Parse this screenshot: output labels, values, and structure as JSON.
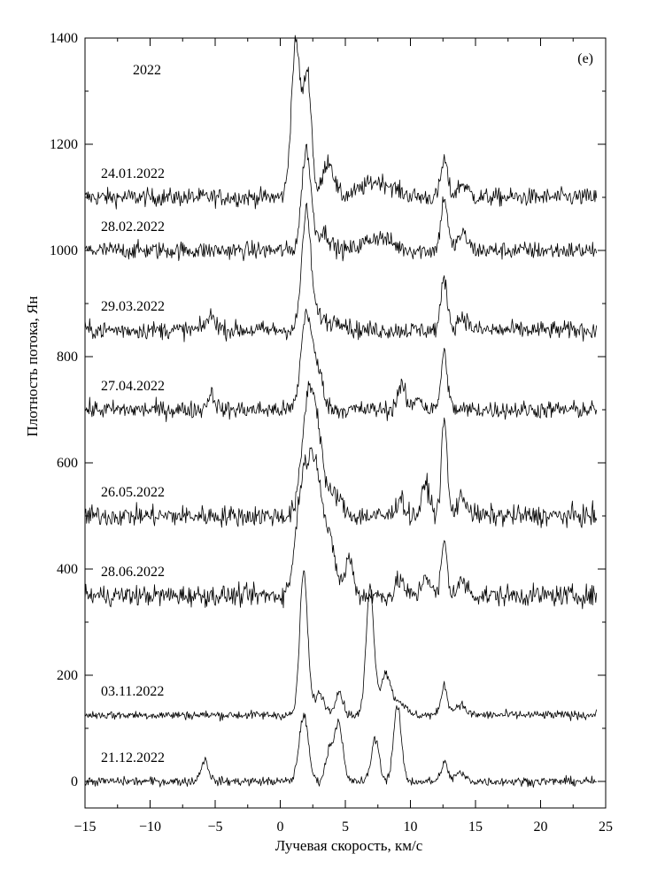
{
  "chart_data": {
    "type": "line",
    "panel_label": "(e)",
    "year_label": "2022",
    "xlabel": "Лучевая скорость, км/с",
    "ylabel": "Плотность потока, Ян",
    "xlim": [
      -15,
      25
    ],
    "ylim": [
      -50,
      1400
    ],
    "xticks": [
      -15,
      -10,
      -5,
      0,
      5,
      10,
      15,
      20,
      25
    ],
    "xtick_labels": [
      "−15",
      "−10",
      "−5",
      "0",
      "5",
      "10",
      "15",
      "20",
      "25"
    ],
    "yticks": [
      0,
      200,
      400,
      600,
      800,
      1000,
      1200,
      1400
    ],
    "ytick_labels": [
      "0",
      "200",
      "400",
      "600",
      "800",
      "1000",
      "1200",
      "1400"
    ],
    "grid": false,
    "legend": "none",
    "x_data_range": [
      -15,
      24.3
    ],
    "series": [
      {
        "name": "24.01.2022",
        "baseline": 1100,
        "noise": 12,
        "components": [
          {
            "v": 1.2,
            "amp": 290,
            "w": 0.35
          },
          {
            "v": 2.1,
            "amp": 230,
            "w": 0.3
          },
          {
            "v": 3.7,
            "amp": 70,
            "w": 0.4
          },
          {
            "v": 7.5,
            "amp": 30,
            "w": 1.2
          },
          {
            "v": 12.6,
            "amp": 70,
            "w": 0.25
          },
          {
            "v": 14.0,
            "amp": 25,
            "w": 0.4
          }
        ]
      },
      {
        "name": "28.02.2022",
        "baseline": 1000,
        "noise": 12,
        "components": [
          {
            "v": 2.0,
            "amp": 190,
            "w": 0.35
          },
          {
            "v": 3.3,
            "amp": 35,
            "w": 0.5
          },
          {
            "v": 7.5,
            "amp": 25,
            "w": 1.0
          },
          {
            "v": 12.6,
            "amp": 100,
            "w": 0.25
          },
          {
            "v": 14.0,
            "amp": 30,
            "w": 0.4
          }
        ]
      },
      {
        "name": "29.03.2022",
        "baseline": 850,
        "noise": 12,
        "components": [
          {
            "v": 2.0,
            "amp": 220,
            "w": 0.35
          },
          {
            "v": 3.0,
            "amp": 25,
            "w": 0.5
          },
          {
            "v": 4.5,
            "amp": 20,
            "w": 0.5
          },
          {
            "v": -5.3,
            "amp": 25,
            "w": 0.4
          },
          {
            "v": 12.6,
            "amp": 95,
            "w": 0.25
          },
          {
            "v": 14.0,
            "amp": 25,
            "w": 0.4
          }
        ]
      },
      {
        "name": "27.04.2022",
        "baseline": 700,
        "noise": 12,
        "components": [
          {
            "v": 2.0,
            "amp": 180,
            "w": 0.4
          },
          {
            "v": 2.9,
            "amp": 70,
            "w": 0.4
          },
          {
            "v": -5.3,
            "amp": 30,
            "w": 0.3
          },
          {
            "v": 9.3,
            "amp": 45,
            "w": 0.3
          },
          {
            "v": 10.6,
            "amp": 25,
            "w": 0.3
          },
          {
            "v": 12.6,
            "amp": 105,
            "w": 0.25
          }
        ]
      },
      {
        "name": "26.05.2022",
        "baseline": 500,
        "noise": 14,
        "components": [
          {
            "v": 2.2,
            "amp": 230,
            "w": 0.5
          },
          {
            "v": 3.0,
            "amp": 100,
            "w": 0.4
          },
          {
            "v": 4.2,
            "amp": 40,
            "w": 0.5
          },
          {
            "v": 9.2,
            "amp": 35,
            "w": 0.3
          },
          {
            "v": 11.2,
            "amp": 60,
            "w": 0.3
          },
          {
            "v": 12.6,
            "amp": 180,
            "w": 0.22
          },
          {
            "v": 14.0,
            "amp": 35,
            "w": 0.4
          }
        ]
      },
      {
        "name": "28.06.2022",
        "baseline": 350,
        "noise": 14,
        "components": [
          {
            "v": 1.7,
            "amp": 200,
            "w": 0.5
          },
          {
            "v": 2.7,
            "amp": 230,
            "w": 0.5
          },
          {
            "v": 3.8,
            "amp": 90,
            "w": 0.5
          },
          {
            "v": 5.3,
            "amp": 70,
            "w": 0.3
          },
          {
            "v": 9.2,
            "amp": 30,
            "w": 0.3
          },
          {
            "v": 11.2,
            "amp": 40,
            "w": 0.3
          },
          {
            "v": 12.6,
            "amp": 100,
            "w": 0.22
          },
          {
            "v": 14.0,
            "amp": 25,
            "w": 0.4
          }
        ]
      },
      {
        "name": "03.11.2022",
        "baseline": 125,
        "noise": 6,
        "components": [
          {
            "v": 1.8,
            "amp": 270,
            "w": 0.3
          },
          {
            "v": 3.0,
            "amp": 40,
            "w": 0.4
          },
          {
            "v": 4.5,
            "amp": 45,
            "w": 0.3
          },
          {
            "v": 6.9,
            "amp": 240,
            "w": 0.3
          },
          {
            "v": 8.1,
            "amp": 80,
            "w": 0.4
          },
          {
            "v": 9.2,
            "amp": 25,
            "w": 0.4
          },
          {
            "v": 12.6,
            "amp": 55,
            "w": 0.25
          },
          {
            "v": 13.8,
            "amp": 20,
            "w": 0.4
          }
        ]
      },
      {
        "name": "21.12.2022",
        "baseline": 0,
        "noise": 6,
        "components": [
          {
            "v": -5.8,
            "amp": 40,
            "w": 0.3
          },
          {
            "v": 1.8,
            "amp": 125,
            "w": 0.35
          },
          {
            "v": 3.8,
            "amp": 60,
            "w": 0.3
          },
          {
            "v": 4.5,
            "amp": 110,
            "w": 0.3
          },
          {
            "v": 7.3,
            "amp": 80,
            "w": 0.3
          },
          {
            "v": 9.0,
            "amp": 140,
            "w": 0.3
          },
          {
            "v": 12.6,
            "amp": 35,
            "w": 0.25
          },
          {
            "v": 13.8,
            "amp": 15,
            "w": 0.4
          }
        ]
      }
    ]
  }
}
